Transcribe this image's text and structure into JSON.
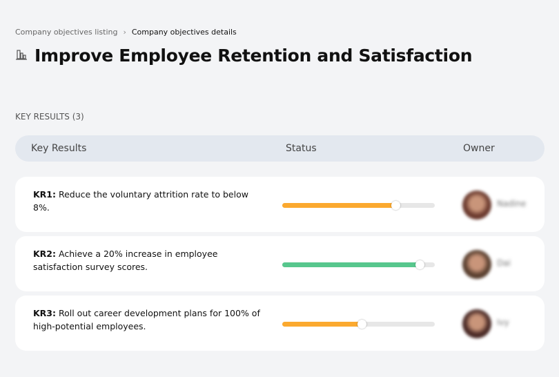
{
  "breadcrumb": {
    "parent": "Company objectives listing",
    "current": "Company objectives details"
  },
  "title": {
    "icon": "building-icon",
    "text": "Improve Employee Retention and Satisfaction"
  },
  "section_label": "KEY RESULTS (3)",
  "table_headers": {
    "key_results": "Key Results",
    "status": "Status",
    "owner": "Owner"
  },
  "colors": {
    "orange": "#fba92f",
    "green": "#57c78d"
  },
  "key_results": [
    {
      "id": "KR1:",
      "text": " Reduce the voluntary attrition rate to below 8%.",
      "progress_percent": 74,
      "color": "#fba92f",
      "owner": "Nadine",
      "avatar_color": "#6b3a2e"
    },
    {
      "id": "KR2:",
      "text": " Achieve a 20% increase in employee satisfaction survey scores.",
      "progress_percent": 90,
      "color": "#57c78d",
      "owner": "Dai",
      "avatar_color": "#5a4030"
    },
    {
      "id": "KR3:",
      "text": " Roll out career development plans for 100% of high-potential employees.",
      "progress_percent": 52,
      "color": "#fba92f",
      "owner": "Ivy",
      "avatar_color": "#4a2a26"
    }
  ]
}
